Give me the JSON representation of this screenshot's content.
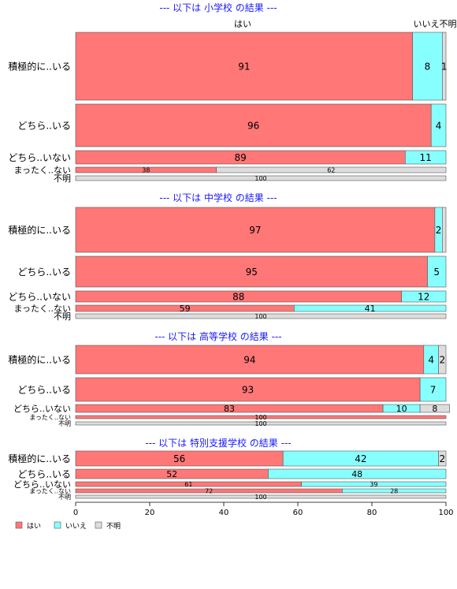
{
  "colors": {
    "yes": "#ff7777",
    "no": "#88ffff",
    "unknown": "#dddddd",
    "title": "#1a1aff",
    "border": "#555555"
  },
  "column_headers": {
    "yes": "はい",
    "no": "いいえ",
    "unknown": "不明",
    "no_unknown_combined": "いいえ不明"
  },
  "legend": {
    "yes": "はい",
    "no": "いいえ",
    "unknown": "不明"
  },
  "chart_data": {
    "type": "bar",
    "orientation": "horizontal",
    "stacked": "percent",
    "xlim": [
      0,
      100
    ],
    "x_ticks": [
      0,
      20,
      40,
      60,
      80,
      100
    ],
    "series_names": [
      "はい",
      "いいえ",
      "不明"
    ],
    "panels": [
      {
        "title": "--- 以下は 小学校 の結果 ---",
        "rows": [
          {
            "label": "積極的に..いる",
            "values": [
              91,
              8,
              1
            ],
            "labels": [
              "91",
              "8",
              "1"
            ]
          },
          {
            "label": "どちら..いる",
            "values": [
              96,
              4,
              0
            ],
            "labels": [
              "96",
              "4",
              ""
            ]
          },
          {
            "label": "どちら..いない",
            "values": [
              89,
              11,
              0
            ],
            "labels": [
              "89",
              "11",
              ""
            ]
          },
          {
            "label": "まったく..ない",
            "values": [
              38,
              0,
              62
            ],
            "labels": [
              "38",
              "",
              "62"
            ]
          },
          {
            "label": "不明",
            "values": [
              0,
              0,
              100
            ],
            "labels": [
              "",
              "",
              "100"
            ]
          }
        ]
      },
      {
        "title": "--- 以下は 中学校 の結果 ---",
        "rows": [
          {
            "label": "積極的に..いる",
            "values": [
              97,
              2,
              1
            ],
            "labels": [
              "97",
              "2",
              ""
            ]
          },
          {
            "label": "どちら..いる",
            "values": [
              95,
              5,
              0
            ],
            "labels": [
              "95",
              "5",
              ""
            ]
          },
          {
            "label": "どちら..いない",
            "values": [
              88,
              12,
              0
            ],
            "labels": [
              "88",
              "12",
              ""
            ]
          },
          {
            "label": "まったく..ない",
            "values": [
              59,
              41,
              0
            ],
            "labels": [
              "59",
              "41",
              ""
            ]
          },
          {
            "label": "不明",
            "values": [
              0,
              0,
              100
            ],
            "labels": [
              "",
              "",
              "100"
            ]
          }
        ]
      },
      {
        "title": "--- 以下は 高等学校 の結果 ---",
        "rows": [
          {
            "label": "積極的に..いる",
            "values": [
              94,
              4,
              2
            ],
            "labels": [
              "94",
              "4",
              "2"
            ]
          },
          {
            "label": "どちら..いる",
            "values": [
              93,
              7,
              0
            ],
            "labels": [
              "93",
              "7",
              ""
            ]
          },
          {
            "label": "どちら..いない",
            "values": [
              83,
              10,
              8
            ],
            "labels": [
              "83",
              "10",
              "8"
            ]
          },
          {
            "label": "まったく..ない",
            "values": [
              100,
              0,
              0
            ],
            "labels": [
              "100",
              "",
              ""
            ]
          },
          {
            "label": "不明",
            "values": [
              0,
              0,
              100
            ],
            "labels": [
              "",
              "",
              "100"
            ]
          }
        ]
      },
      {
        "title": "--- 以下は 特別支援学校 の結果 ---",
        "rows": [
          {
            "label": "積極的に..いる",
            "values": [
              56,
              42,
              2
            ],
            "labels": [
              "56",
              "42",
              "2"
            ]
          },
          {
            "label": "どちら..いる",
            "values": [
              52,
              48,
              0
            ],
            "labels": [
              "52",
              "48",
              ""
            ]
          },
          {
            "label": "どちら..いない",
            "values": [
              61,
              39,
              0
            ],
            "labels": [
              "61",
              "39",
              ""
            ]
          },
          {
            "label": "まったく..ない",
            "values": [
              72,
              28,
              0
            ],
            "labels": [
              "72",
              "28",
              ""
            ]
          },
          {
            "label": "不明",
            "values": [
              0,
              0,
              100
            ],
            "labels": [
              "",
              "",
              "100"
            ]
          }
        ]
      }
    ]
  }
}
